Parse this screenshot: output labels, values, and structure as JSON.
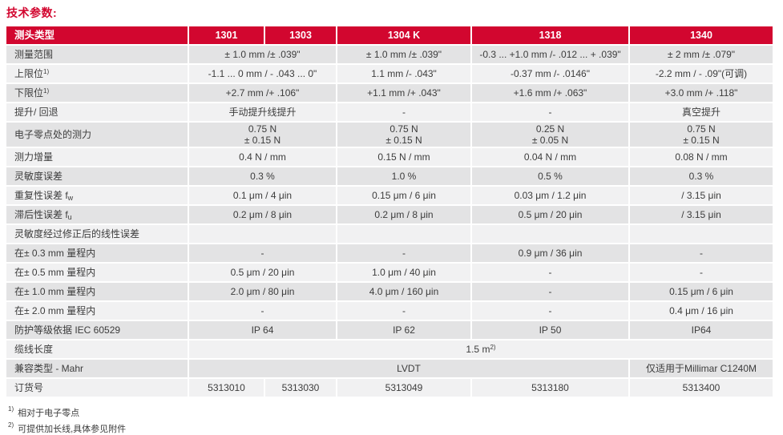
{
  "page": {
    "title": "技术参数:"
  },
  "colors": {
    "brand_red": "#d2062f",
    "row_dark": "#e3e3e4",
    "row_light": "#f1f1f2",
    "header_text": "#ffffff",
    "body_text": "#3c3c3c"
  },
  "table": {
    "header": {
      "label": "测头类型",
      "columns": [
        "1301",
        "1303",
        "1304 K",
        "1318",
        "1340"
      ]
    },
    "rows": [
      {
        "label": "测量范围",
        "cells": [
          {
            "text": "± 1.0 mm /± .039\"",
            "span": 2
          },
          {
            "text": "± 1.0 mm /± .039\""
          },
          {
            "text": "-0.3 ... +1.0 mm /- .012 ... + .039\""
          },
          {
            "text": "± 2 mm /± .079\""
          }
        ]
      },
      {
        "label": "上限位",
        "label_sup": "1)",
        "cells": [
          {
            "text": "-1.1 ... 0 mm / - .043 ... 0\"",
            "span": 2
          },
          {
            "text": "1.1 mm /- .043\""
          },
          {
            "text": "-0.37 mm /- .0146\""
          },
          {
            "text": "-2.2 mm / - .09\"(可调)"
          }
        ]
      },
      {
        "label": "下限位",
        "label_sup": "1)",
        "cells": [
          {
            "text": "+2.7 mm /+ .106\"",
            "span": 2
          },
          {
            "text": "+1.1 mm /+ .043\""
          },
          {
            "text": "+1.6 mm /+ .063\""
          },
          {
            "text": "+3.0 mm /+ .118\""
          }
        ]
      },
      {
        "label": "提升/ 回退",
        "cells": [
          {
            "text": "手动提升线提升",
            "span": 2
          },
          {
            "text": "-"
          },
          {
            "text": "-"
          },
          {
            "text": "真空提升"
          }
        ]
      },
      {
        "label": "电子零点处的测力",
        "cells": [
          {
            "lines": [
              "0.75 N",
              "± 0.15 N"
            ],
            "span": 2
          },
          {
            "lines": [
              "0.75 N",
              "± 0.15 N"
            ]
          },
          {
            "lines": [
              "0.25 N",
              "± 0.05 N"
            ]
          },
          {
            "lines": [
              "0.75 N",
              "± 0.15 N"
            ]
          }
        ]
      },
      {
        "label": "测力增量",
        "cells": [
          {
            "text": "0.4 N / mm",
            "span": 2
          },
          {
            "text": "0.15 N / mm"
          },
          {
            "text": "0.04 N / mm"
          },
          {
            "text": "0.08 N / mm"
          }
        ]
      },
      {
        "label": "灵敏度误差",
        "cells": [
          {
            "text": "0.3 %",
            "span": 2
          },
          {
            "text": "1.0 %"
          },
          {
            "text": "0.5 %"
          },
          {
            "text": "0.3 %"
          }
        ]
      },
      {
        "label": "重复性误差 f",
        "label_sub": "w",
        "cells": [
          {
            "text": "0.1 μm / 4 μin",
            "span": 2
          },
          {
            "text": "0.15 μm / 6 μin"
          },
          {
            "text": "0.03 μm / 1.2 μin"
          },
          {
            "text": "/ 3.15 μin"
          }
        ]
      },
      {
        "label": "滞后性误差 f",
        "label_sub": "u",
        "cells": [
          {
            "text": "0.2 μm / 8 μin",
            "span": 2
          },
          {
            "text": "0.2 μm / 8 μin"
          },
          {
            "text": "0.5 μm / 20 μin"
          },
          {
            "text": "/ 3.15 μin"
          }
        ]
      },
      {
        "label": "灵敏度经过修正后的线性误差",
        "cells": [
          {
            "text": "",
            "span": 2
          },
          {
            "text": ""
          },
          {
            "text": ""
          },
          {
            "text": ""
          }
        ]
      },
      {
        "label": "在± 0.3 mm 量程内",
        "cells": [
          {
            "text": "-",
            "span": 2
          },
          {
            "text": "-"
          },
          {
            "text": "0.9 μm / 36 μin"
          },
          {
            "text": "-"
          }
        ]
      },
      {
        "label": "在± 0.5 mm 量程内",
        "cells": [
          {
            "text": "0.5 μm / 20 μin",
            "span": 2
          },
          {
            "text": "1.0 μm / 40 μin"
          },
          {
            "text": "-"
          },
          {
            "text": "-"
          }
        ]
      },
      {
        "label": "在± 1.0 mm 量程内",
        "cells": [
          {
            "text": "2.0 μm / 80 μin",
            "span": 2
          },
          {
            "text": "4.0 μm / 160 μin"
          },
          {
            "text": "-"
          },
          {
            "text": "0.15 μm / 6 μin"
          }
        ]
      },
      {
        "label": "在± 2.0 mm 量程内",
        "cells": [
          {
            "text": "-",
            "span": 2
          },
          {
            "text": "-"
          },
          {
            "text": "-"
          },
          {
            "text": "0.4 μm / 16 μin"
          }
        ]
      },
      {
        "label": "防护等级依据 IEC 60529",
        "cells": [
          {
            "text": "IP 64",
            "span": 2
          },
          {
            "text": "IP 62"
          },
          {
            "text": "IP 50"
          },
          {
            "text": "IP64"
          }
        ]
      },
      {
        "label": "缆线长度",
        "cells": [
          {
            "text": "1.5 m",
            "sup": "2)",
            "span": 5
          }
        ]
      },
      {
        "label": "兼容类型 - Mahr",
        "cells": [
          {
            "text": "LVDT",
            "span": 4
          },
          {
            "text": "仅适用于Millimar C1240M"
          }
        ]
      },
      {
        "label": "订货号",
        "cells": [
          {
            "text": "5313010"
          },
          {
            "text": "5313030"
          },
          {
            "text": "5313049"
          },
          {
            "text": "5313180"
          },
          {
            "text": "5313400"
          }
        ]
      }
    ]
  },
  "footnotes": [
    {
      "sup": "1)",
      "text": "相对于电子零点"
    },
    {
      "sup": "2)",
      "text": "可提供加长线,具体参见附件"
    }
  ]
}
